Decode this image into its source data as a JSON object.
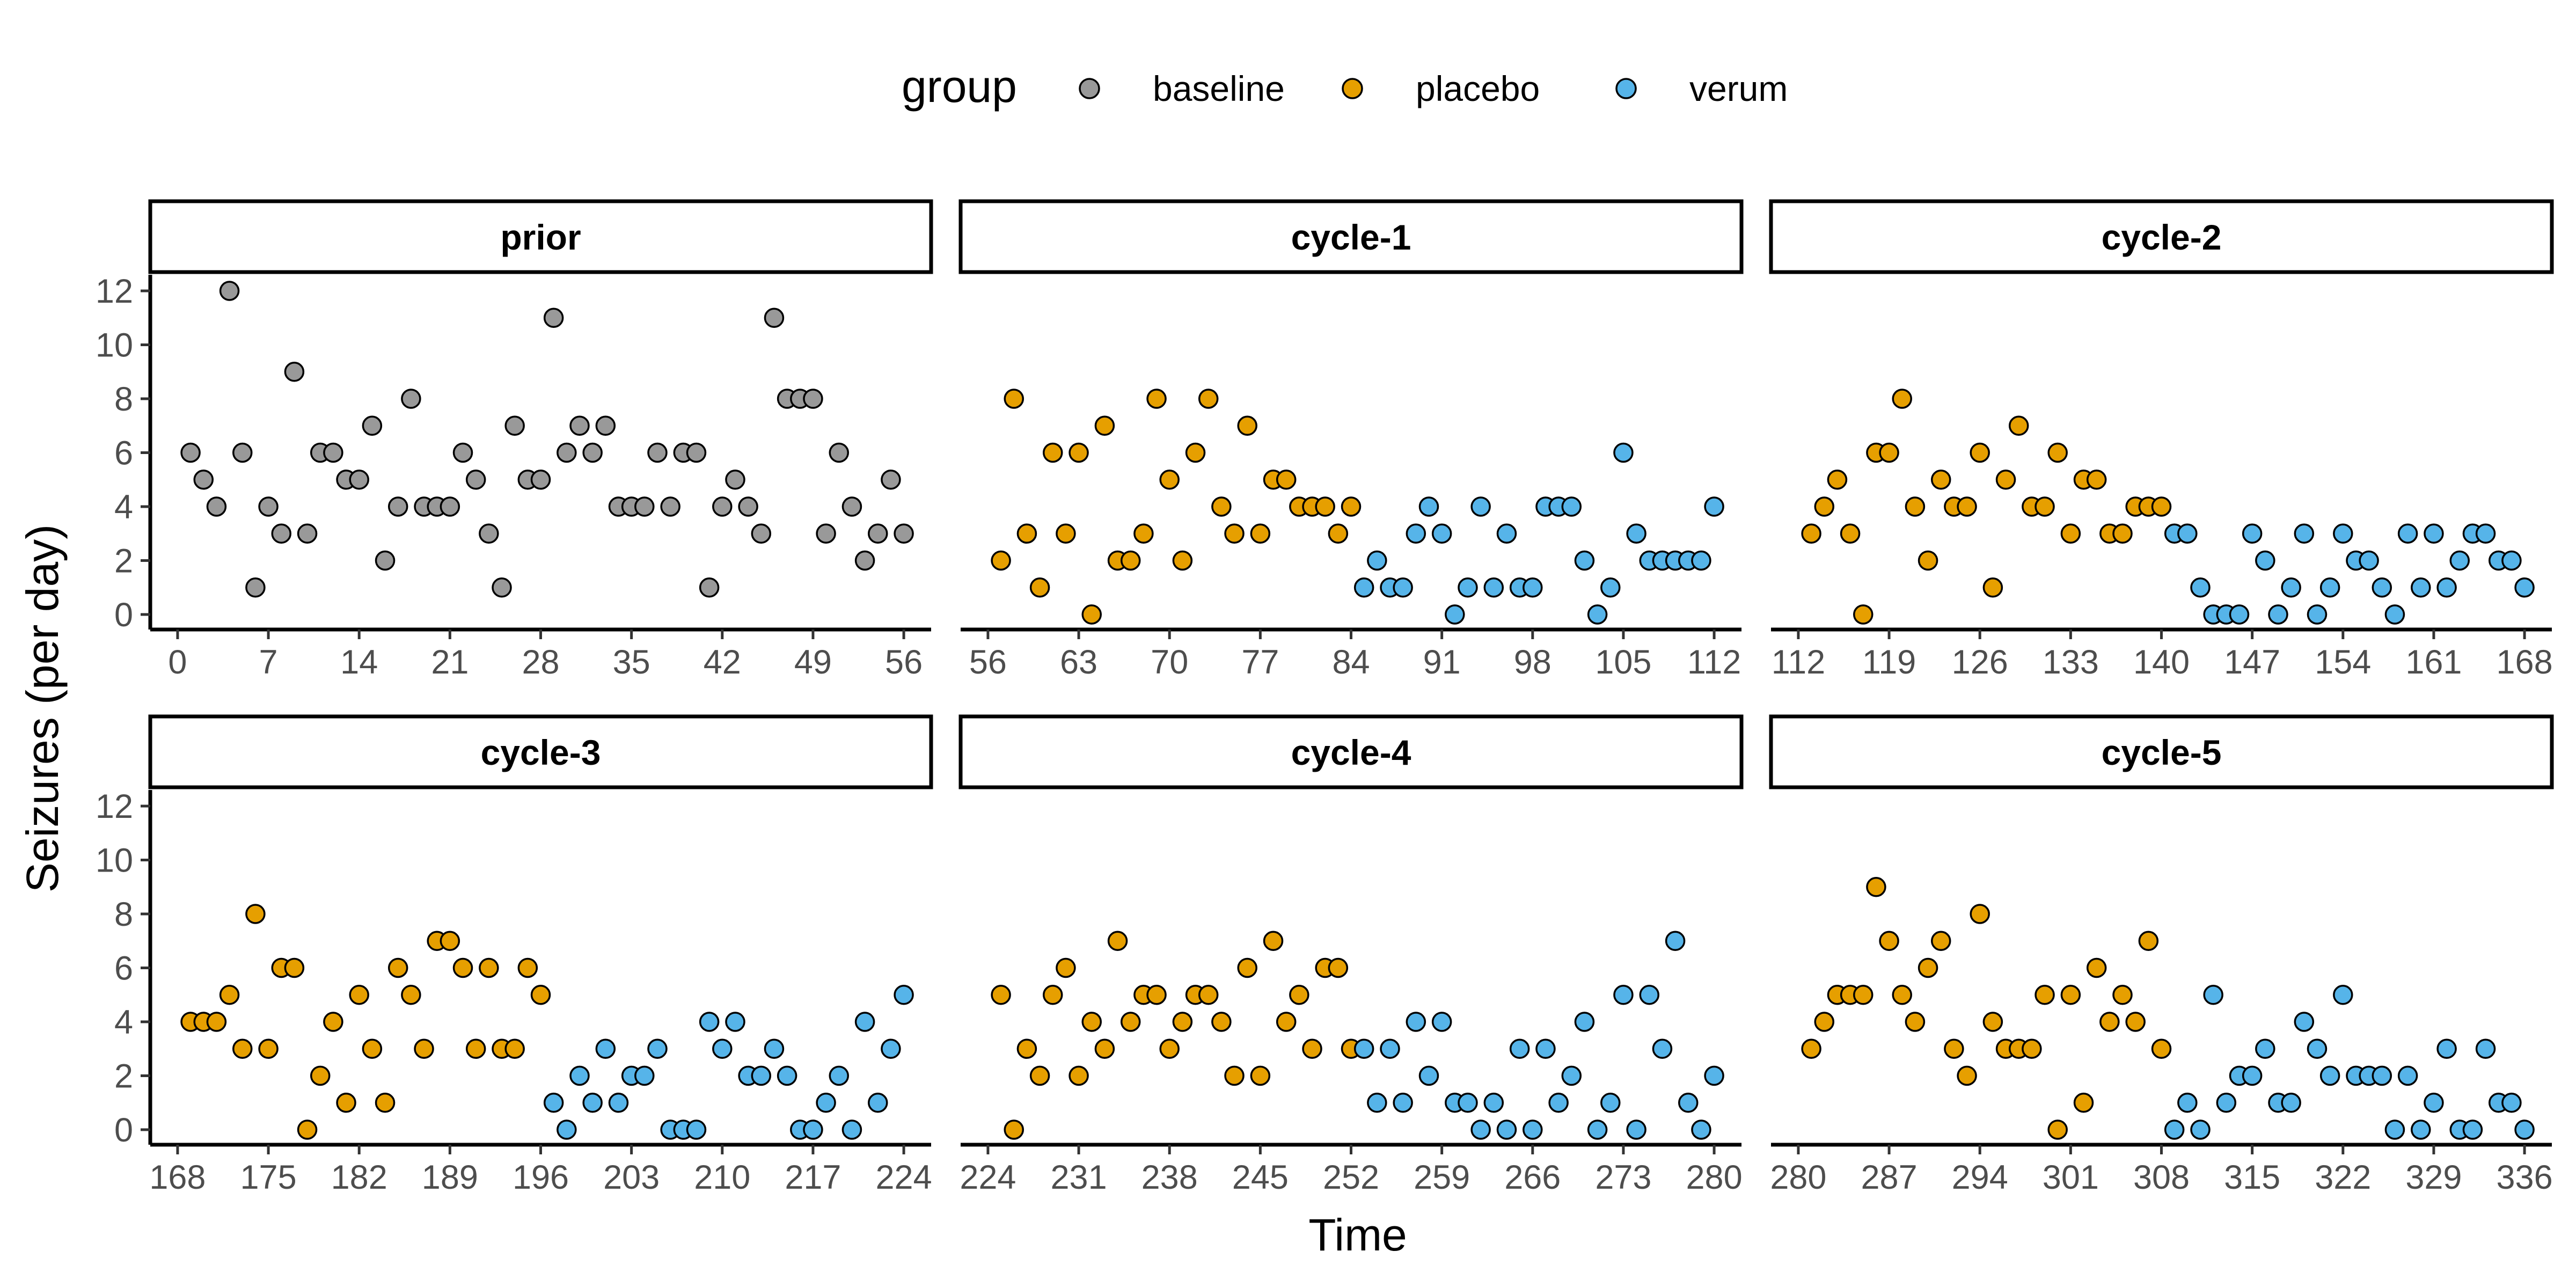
{
  "chart_data": {
    "type": "scatter",
    "xlabel": "Time",
    "ylabel": "Seizures (per day)",
    "ylim": [
      0,
      12
    ],
    "yticks": [
      0,
      2,
      4,
      6,
      8,
      10,
      12
    ],
    "legend": {
      "title": "group",
      "position": "top",
      "entries": [
        {
          "name": "baseline",
          "color": "#999999"
        },
        {
          "name": "placebo",
          "color": "#E69F00"
        },
        {
          "name": "verum",
          "color": "#56B4E9"
        }
      ]
    },
    "panels": [
      {
        "label": "prior",
        "xlim": [
          0,
          56
        ],
        "xticks": [
          0,
          7,
          14,
          21,
          28,
          35,
          42,
          49,
          56
        ],
        "series": [
          {
            "name": "baseline",
            "x": [
              1,
              2,
              3,
              4,
              5,
              6,
              7,
              8,
              9,
              10,
              11,
              12,
              13,
              14,
              15,
              16,
              17,
              18,
              19,
              20,
              21,
              22,
              23,
              24,
              25,
              26,
              27,
              28,
              29,
              30,
              31,
              32,
              33,
              34,
              35,
              36,
              37,
              38,
              39,
              40,
              41,
              42,
              43,
              44,
              45,
              46,
              47,
              48,
              49,
              50,
              51,
              52,
              53,
              54,
              55,
              56
            ],
            "y": [
              6,
              5,
              4,
              12,
              6,
              1,
              4,
              3,
              9,
              3,
              6,
              6,
              5,
              5,
              7,
              2,
              4,
              8,
              4,
              4,
              4,
              6,
              5,
              3,
              1,
              7,
              5,
              5,
              11,
              6,
              7,
              6,
              7,
              4,
              4,
              4,
              6,
              4,
              6,
              6,
              1,
              4,
              5,
              4,
              3,
              11,
              8,
              8,
              8,
              3,
              6,
              4,
              2,
              3,
              5,
              3
            ]
          }
        ]
      },
      {
        "label": "cycle-1",
        "xlim": [
          56,
          112
        ],
        "xticks": [
          56,
          63,
          70,
          77,
          84,
          91,
          98,
          105,
          112
        ],
        "series": [
          {
            "name": "placebo",
            "x": [
              57,
              58,
              59,
              60,
              61,
              62,
              63,
              64,
              65,
              66,
              67,
              68,
              69,
              70,
              71,
              72,
              73,
              74,
              75,
              76,
              77,
              78,
              79,
              80,
              81,
              82,
              83,
              84
            ],
            "y": [
              2,
              8,
              3,
              1,
              6,
              3,
              6,
              0,
              7,
              2,
              2,
              3,
              8,
              5,
              2,
              6,
              8,
              4,
              3,
              7,
              3,
              5,
              5,
              4,
              4,
              4,
              3,
              4
            ]
          },
          {
            "name": "verum",
            "x": [
              85,
              86,
              87,
              88,
              89,
              90,
              91,
              92,
              93,
              94,
              95,
              96,
              97,
              98,
              99,
              100,
              101,
              102,
              103,
              104,
              105,
              106,
              107,
              108,
              109,
              110,
              111,
              112
            ],
            "y": [
              1,
              2,
              1,
              1,
              3,
              4,
              3,
              0,
              1,
              4,
              1,
              3,
              1,
              1,
              4,
              4,
              4,
              2,
              0,
              1,
              6,
              3,
              2,
              2,
              2,
              2,
              2,
              4
            ]
          }
        ]
      },
      {
        "label": "cycle-2",
        "xlim": [
          112,
          168
        ],
        "xticks": [
          112,
          119,
          126,
          133,
          140,
          147,
          154,
          161,
          168
        ],
        "series": [
          {
            "name": "placebo",
            "x": [
              113,
              114,
              115,
              116,
              117,
              118,
              119,
              120,
              121,
              122,
              123,
              124,
              125,
              126,
              127,
              128,
              129,
              130,
              131,
              132,
              133,
              134,
              135,
              136,
              137,
              138,
              139,
              140
            ],
            "y": [
              3,
              4,
              5,
              3,
              0,
              6,
              6,
              8,
              4,
              2,
              5,
              4,
              4,
              6,
              1,
              5,
              7,
              4,
              4,
              6,
              3,
              5,
              5,
              3,
              3,
              4,
              4,
              4
            ]
          },
          {
            "name": "verum",
            "x": [
              141,
              142,
              143,
              144,
              145,
              146,
              147,
              148,
              149,
              150,
              151,
              152,
              153,
              154,
              155,
              156,
              157,
              158,
              159,
              160,
              161,
              162,
              163,
              164,
              165,
              166,
              167,
              168
            ],
            "y": [
              3,
              3,
              1,
              0,
              0,
              0,
              3,
              2,
              0,
              1,
              3,
              0,
              1,
              3,
              2,
              2,
              1,
              0,
              3,
              1,
              3,
              1,
              2,
              3,
              3,
              2,
              2,
              1
            ]
          }
        ]
      },
      {
        "label": "cycle-3",
        "xlim": [
          168,
          224
        ],
        "xticks": [
          168,
          175,
          182,
          189,
          196,
          203,
          210,
          217,
          224
        ],
        "series": [
          {
            "name": "placebo",
            "x": [
              169,
              170,
              171,
              172,
              173,
              174,
              175,
              176,
              177,
              178,
              179,
              180,
              181,
              182,
              183,
              184,
              185,
              186,
              187,
              188,
              189,
              190,
              191,
              192,
              193,
              194,
              195,
              196
            ],
            "y": [
              4,
              4,
              4,
              5,
              3,
              8,
              3,
              6,
              6,
              0,
              2,
              4,
              1,
              5,
              3,
              1,
              6,
              5,
              3,
              7,
              7,
              6,
              3,
              6,
              3,
              3,
              6,
              5
            ]
          },
          {
            "name": "verum",
            "x": [
              197,
              198,
              199,
              200,
              201,
              202,
              203,
              204,
              205,
              206,
              207,
              208,
              209,
              210,
              211,
              212,
              213,
              214,
              215,
              216,
              217,
              218,
              219,
              220,
              221,
              222,
              223,
              224
            ],
            "y": [
              1,
              0,
              2,
              1,
              3,
              1,
              2,
              2,
              3,
              0,
              0,
              0,
              4,
              3,
              4,
              2,
              2,
              3,
              2,
              0,
              0,
              1,
              2,
              0,
              4,
              1,
              3,
              5
            ]
          }
        ]
      },
      {
        "label": "cycle-4",
        "xlim": [
          224,
          280
        ],
        "xticks": [
          224,
          231,
          238,
          245,
          252,
          259,
          266,
          273,
          280
        ],
        "series": [
          {
            "name": "placebo",
            "x": [
              225,
              226,
              227,
              228,
              229,
              230,
              231,
              232,
              233,
              234,
              235,
              236,
              237,
              238,
              239,
              240,
              241,
              242,
              243,
              244,
              245,
              246,
              247,
              248,
              249,
              250,
              251,
              252
            ],
            "y": [
              5,
              0,
              3,
              2,
              5,
              6,
              2,
              4,
              3,
              7,
              4,
              5,
              5,
              3,
              4,
              5,
              5,
              4,
              2,
              6,
              2,
              7,
              4,
              5,
              3,
              6,
              6,
              3
            ]
          },
          {
            "name": "verum",
            "x": [
              253,
              254,
              255,
              256,
              257,
              258,
              259,
              260,
              261,
              262,
              263,
              264,
              265,
              266,
              267,
              268,
              269,
              270,
              271,
              272,
              273,
              274,
              275,
              276,
              277,
              278,
              279,
              280
            ],
            "y": [
              3,
              1,
              3,
              1,
              4,
              2,
              4,
              1,
              1,
              0,
              1,
              0,
              3,
              0,
              3,
              1,
              2,
              4,
              0,
              1,
              5,
              0,
              5,
              3,
              7,
              1,
              0,
              2
            ]
          }
        ]
      },
      {
        "label": "cycle-5",
        "xlim": [
          280,
          336
        ],
        "xticks": [
          280,
          287,
          294,
          301,
          308,
          315,
          322,
          329,
          336
        ],
        "series": [
          {
            "name": "placebo",
            "x": [
              281,
              282,
              283,
              284,
              285,
              286,
              287,
              288,
              289,
              290,
              291,
              292,
              293,
              294,
              295,
              296,
              297,
              298,
              299,
              300,
              301,
              302,
              303,
              304,
              305,
              306,
              307,
              308
            ],
            "y": [
              3,
              4,
              5,
              5,
              5,
              9,
              7,
              5,
              4,
              6,
              7,
              3,
              2,
              8,
              4,
              3,
              3,
              3,
              5,
              0,
              5,
              1,
              6,
              4,
              5,
              4,
              7,
              3
            ]
          },
          {
            "name": "verum",
            "x": [
              309,
              310,
              311,
              312,
              313,
              314,
              315,
              316,
              317,
              318,
              319,
              320,
              321,
              322,
              323,
              324,
              325,
              326,
              327,
              328,
              329,
              330,
              331,
              332,
              333,
              334,
              335,
              336
            ],
            "y": [
              0,
              1,
              0,
              5,
              1,
              2,
              2,
              3,
              1,
              1,
              4,
              3,
              2,
              5,
              2,
              2,
              2,
              0,
              2,
              0,
              1,
              3,
              0,
              0,
              3,
              1,
              1,
              0
            ]
          }
        ]
      }
    ]
  }
}
